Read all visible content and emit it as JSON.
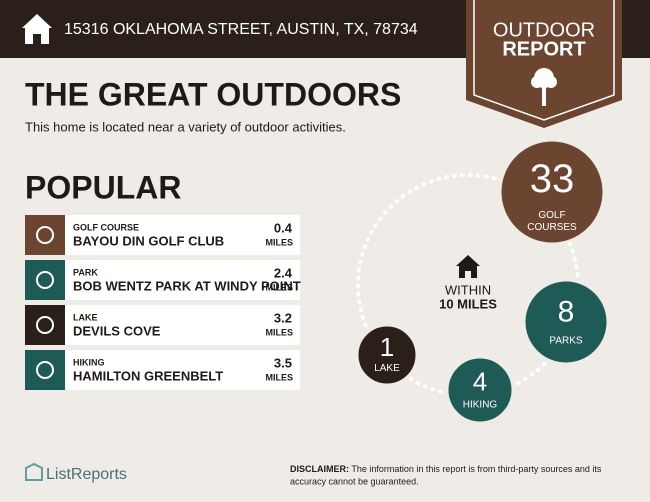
{
  "header": {
    "address": "15316 OKLAHOMA STREET, AUSTIN, TX, 78734"
  },
  "badge": {
    "line1": "OUTDOOR",
    "line2": "REPORT"
  },
  "title": "THE GREAT OUTDOORS",
  "subtitle": "This home is located near a variety of outdoor activities.",
  "popular": {
    "heading": "POPULAR",
    "items": [
      {
        "category": "GOLF COURSE",
        "name": "BAYOU DIN GOLF CLUB",
        "distance": 0.4,
        "unit": "MILES"
      },
      {
        "category": "PARK",
        "name": "BOB WENTZ PARK AT WINDY POINT",
        "distance": 2.4,
        "unit": "MILES"
      },
      {
        "category": "LAKE",
        "name": "DEVILS COVE",
        "distance": 3.2,
        "unit": "MILES"
      },
      {
        "category": "HIKING",
        "name": "HAMILTON GREENBELT",
        "distance": 3.5,
        "unit": "MILES"
      }
    ]
  },
  "summary": {
    "within": "WITHIN",
    "radius": "10 MILES",
    "counts": [
      {
        "count": 33,
        "label_line1": "GOLF",
        "label_line2": "COURSES"
      },
      {
        "count": 8,
        "label_line1": "PARKS"
      },
      {
        "count": 4,
        "label_line1": "HIKING"
      },
      {
        "count": 1,
        "label_line1": "LAKE"
      }
    ]
  },
  "footer": {
    "brand": "ListReports",
    "disclaimer_label": "DISCLAIMER:",
    "disclaimer_line1": " The information in this report is from third-party sources and its",
    "disclaimer_line2": "accuracy cannot be guaranteed."
  }
}
